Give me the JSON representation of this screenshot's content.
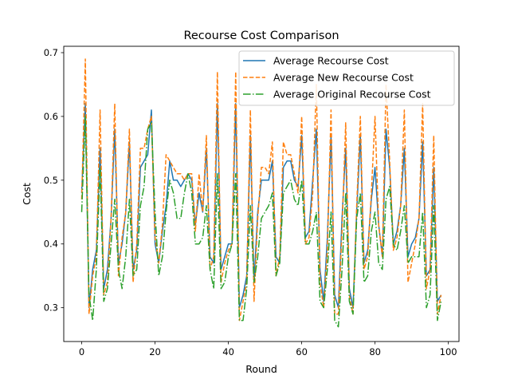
{
  "chart_data": {
    "type": "line",
    "title": "Recourse Cost Comparison",
    "xlabel": "Round",
    "ylabel": "Cost",
    "xlim": [
      -4.9,
      102.9
    ],
    "ylim": [
      0.247,
      0.71
    ],
    "xticks": [
      0,
      20,
      40,
      60,
      80,
      100
    ],
    "yticks": [
      0.3,
      0.4,
      0.5,
      0.6,
      0.7
    ],
    "xtick_labels": [
      "0",
      "20",
      "40",
      "60",
      "80",
      "100"
    ],
    "ytick_labels": [
      "0.3",
      "0.4",
      "0.5",
      "0.6",
      "0.7"
    ],
    "grid": false,
    "legend_position": "upper right",
    "x": [
      0,
      1,
      2,
      3,
      4,
      5,
      6,
      7,
      8,
      9,
      10,
      11,
      12,
      13,
      14,
      15,
      16,
      17,
      18,
      19,
      20,
      21,
      22,
      23,
      24,
      25,
      26,
      27,
      28,
      29,
      30,
      31,
      32,
      33,
      34,
      35,
      36,
      37,
      38,
      39,
      40,
      41,
      42,
      43,
      44,
      45,
      46,
      47,
      48,
      49,
      50,
      51,
      52,
      53,
      54,
      55,
      56,
      57,
      58,
      59,
      60,
      61,
      62,
      63,
      64,
      65,
      66,
      67,
      68,
      69,
      70,
      71,
      72,
      73,
      74,
      75,
      76,
      77,
      78,
      79,
      80,
      81,
      82,
      83,
      84,
      85,
      86,
      87,
      88,
      89,
      90,
      91,
      92,
      93,
      94,
      95,
      96,
      97,
      98
    ],
    "series": [
      {
        "name": "Average Recourse Cost",
        "color": "#1f77b4",
        "style": "solid",
        "values": [
          0.48,
          0.62,
          0.3,
          0.36,
          0.39,
          0.55,
          0.33,
          0.36,
          0.44,
          0.58,
          0.37,
          0.4,
          0.45,
          0.56,
          0.36,
          0.39,
          0.52,
          0.53,
          0.54,
          0.61,
          0.4,
          0.37,
          0.42,
          0.46,
          0.53,
          0.5,
          0.5,
          0.49,
          0.5,
          0.51,
          0.5,
          0.43,
          0.48,
          0.45,
          0.55,
          0.38,
          0.37,
          0.62,
          0.36,
          0.38,
          0.4,
          0.4,
          0.62,
          0.3,
          0.32,
          0.35,
          0.57,
          0.34,
          0.45,
          0.5,
          0.5,
          0.5,
          0.53,
          0.38,
          0.37,
          0.52,
          0.53,
          0.53,
          0.5,
          0.49,
          0.57,
          0.41,
          0.42,
          0.5,
          0.58,
          0.36,
          0.31,
          0.41,
          0.57,
          0.32,
          0.3,
          0.44,
          0.55,
          0.33,
          0.3,
          0.45,
          0.57,
          0.37,
          0.39,
          0.47,
          0.52,
          0.43,
          0.38,
          0.58,
          0.52,
          0.4,
          0.42,
          0.46,
          0.55,
          0.38,
          0.4,
          0.41,
          0.44,
          0.56,
          0.35,
          0.36,
          0.52,
          0.31,
          0.32
        ]
      },
      {
        "name": "Average New Recourse Cost",
        "color": "#ff7f0e",
        "style": "dashed",
        "values": [
          0.47,
          0.69,
          0.29,
          0.35,
          0.38,
          0.61,
          0.32,
          0.34,
          0.44,
          0.62,
          0.35,
          0.41,
          0.45,
          0.58,
          0.34,
          0.4,
          0.55,
          0.55,
          0.58,
          0.6,
          0.41,
          0.37,
          0.43,
          0.54,
          0.53,
          0.52,
          0.51,
          0.51,
          0.5,
          0.51,
          0.51,
          0.42,
          0.51,
          0.45,
          0.57,
          0.36,
          0.38,
          0.67,
          0.34,
          0.37,
          0.39,
          0.4,
          0.67,
          0.28,
          0.31,
          0.34,
          0.61,
          0.31,
          0.44,
          0.52,
          0.52,
          0.51,
          0.56,
          0.35,
          0.38,
          0.56,
          0.54,
          0.54,
          0.51,
          0.48,
          0.6,
          0.4,
          0.41,
          0.48,
          0.65,
          0.34,
          0.3,
          0.39,
          0.61,
          0.29,
          0.29,
          0.42,
          0.59,
          0.32,
          0.29,
          0.46,
          0.6,
          0.36,
          0.38,
          0.48,
          0.6,
          0.43,
          0.38,
          0.65,
          0.53,
          0.39,
          0.41,
          0.46,
          0.61,
          0.34,
          0.37,
          0.4,
          0.44,
          0.62,
          0.33,
          0.36,
          0.57,
          0.29,
          0.32
        ]
      },
      {
        "name": "Average Original Recourse Cost",
        "color": "#2ca02c",
        "style": "dashdot",
        "values": [
          0.45,
          0.6,
          0.32,
          0.28,
          0.36,
          0.52,
          0.31,
          0.33,
          0.4,
          0.47,
          0.36,
          0.33,
          0.38,
          0.47,
          0.35,
          0.36,
          0.46,
          0.49,
          0.58,
          0.59,
          0.45,
          0.35,
          0.38,
          0.45,
          0.5,
          0.48,
          0.44,
          0.44,
          0.48,
          0.51,
          0.48,
          0.4,
          0.4,
          0.41,
          0.46,
          0.36,
          0.33,
          0.51,
          0.33,
          0.34,
          0.38,
          0.4,
          0.51,
          0.28,
          0.28,
          0.33,
          0.46,
          0.34,
          0.38,
          0.44,
          0.45,
          0.46,
          0.48,
          0.35,
          0.37,
          0.48,
          0.49,
          0.5,
          0.47,
          0.46,
          0.5,
          0.4,
          0.4,
          0.42,
          0.45,
          0.31,
          0.3,
          0.36,
          0.45,
          0.28,
          0.27,
          0.36,
          0.48,
          0.31,
          0.29,
          0.44,
          0.48,
          0.34,
          0.35,
          0.42,
          0.45,
          0.37,
          0.36,
          0.47,
          0.49,
          0.4,
          0.39,
          0.42,
          0.46,
          0.37,
          0.38,
          0.38,
          0.38,
          0.45,
          0.3,
          0.32,
          0.46,
          0.28,
          0.31
        ]
      }
    ]
  }
}
